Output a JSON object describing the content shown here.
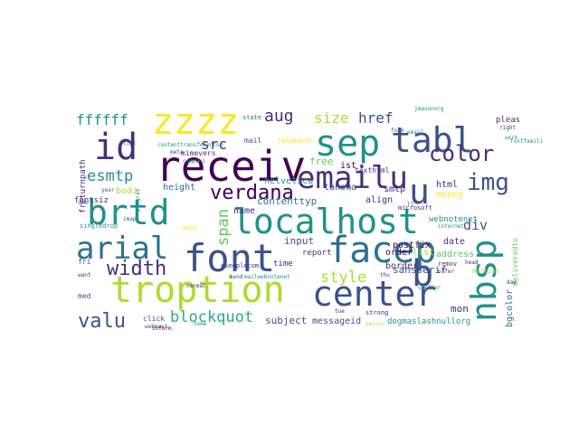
{
  "word_cloud": {
    "palette": [
      "#440154",
      "#472d7b",
      "#3b528b",
      "#2c728e",
      "#21918c",
      "#28ae80",
      "#5ec962",
      "#addc30",
      "#fde725"
    ],
    "words": [
      {
        "text": "receiv",
        "color": "#440154"
      },
      {
        "text": "localhost",
        "color": "#21918c"
      },
      {
        "text": "troption",
        "color": "#addc30"
      },
      {
        "text": "font",
        "color": "#3b528b"
      },
      {
        "text": "center",
        "color": "#3b528b"
      },
      {
        "text": "sep",
        "color": "#21918c"
      },
      {
        "text": "emailu",
        "color": "#472d7b"
      },
      {
        "text": "facep",
        "color": "#2c728e"
      },
      {
        "text": "tabl",
        "color": "#3b528b"
      },
      {
        "text": "zzzz",
        "color": "#fde725"
      },
      {
        "text": "brtd",
        "color": "#21918c"
      },
      {
        "text": "arial",
        "color": "#2c728e"
      },
      {
        "text": "nbsp",
        "color": "#21918c"
      },
      {
        "text": "id",
        "color": "#472d7b"
      },
      {
        "text": "b",
        "color": "#3b528b"
      },
      {
        "text": "u",
        "color": "#3b528b"
      },
      {
        "text": "verdana",
        "color": "#440154"
      },
      {
        "text": "color",
        "color": "#472d7b"
      },
      {
        "text": "width",
        "color": "#472d7b"
      },
      {
        "text": "img",
        "color": "#3b528b"
      },
      {
        "text": "valu",
        "color": "#3b528b"
      },
      {
        "text": "ffffff",
        "color": "#21918c"
      },
      {
        "text": "aug",
        "color": "#472d7b"
      },
      {
        "text": "esmtp",
        "color": "#21918c"
      },
      {
        "text": "blockquot",
        "color": "#28ae80"
      },
      {
        "text": "style",
        "color": "#addc30"
      },
      {
        "text": "size",
        "color": "#addc30"
      },
      {
        "text": "href",
        "color": "#3b528b"
      },
      {
        "text": "src",
        "color": "#472d7b"
      },
      {
        "text": "span",
        "color": "#5ec962"
      },
      {
        "text": "div",
        "color": "#3b528b"
      },
      {
        "text": "height",
        "color": "#2c728e"
      },
      {
        "text": "helvetica",
        "color": "#21918c"
      },
      {
        "text": "align",
        "color": "#472d7b"
      },
      {
        "text": "input",
        "color": "#3b528b"
      },
      {
        "text": "contenttyp",
        "color": "#2c728e"
      },
      {
        "text": "sansserif",
        "color": "#3b528b"
      },
      {
        "text": "subject",
        "color": "#3b528b"
      },
      {
        "text": "messageid",
        "color": "#3b528b"
      },
      {
        "text": "mon",
        "color": "#472d7b"
      },
      {
        "text": "html",
        "color": "#472d7b"
      },
      {
        "text": "money",
        "color": "#fde725"
      },
      {
        "text": "free",
        "color": "#5ec962"
      },
      {
        "text": "ist",
        "color": "#440154"
      },
      {
        "text": "name",
        "color": "#472d7b"
      },
      {
        "text": "bodi",
        "color": "#addc30"
      },
      {
        "text": "smtp",
        "color": "#472d7b"
      },
      {
        "text": "tahoma",
        "color": "#3b528b"
      },
      {
        "text": "border",
        "color": "#472d7b"
      },
      {
        "text": "date",
        "color": "#472d7b"
      },
      {
        "text": "order",
        "color": "#440154"
      },
      {
        "text": "list",
        "color": "#addc30"
      },
      {
        "text": "postfix",
        "color": "#440154"
      },
      {
        "text": "address",
        "color": "#5ec962"
      },
      {
        "text": "report",
        "color": "#472d7b"
      },
      {
        "text": "time",
        "color": "#472d7b"
      },
      {
        "text": "webnotenet",
        "color": "#21918c"
      },
      {
        "text": "bgcolor",
        "color": "#2c728e"
      },
      {
        "text": "dogmaslashnullorg",
        "color": "#21918c"
      },
      {
        "text": "fontsiz",
        "color": "#472d7b"
      },
      {
        "text": "freturnpath",
        "color": "#472d7b"
      },
      {
        "text": "mimevers",
        "color": "#472d7b"
      },
      {
        "text": "jalapeno",
        "color": "#fde725"
      },
      {
        "text": "mail",
        "color": "#3b528b"
      },
      {
        "text": "pleas",
        "color": "#472d7b"
      },
      {
        "text": "fri",
        "color": "#3b528b"
      },
      {
        "text": "med",
        "color": "#3b528b"
      },
      {
        "text": "click",
        "color": "#3b528b"
      },
      {
        "text": "texthtml",
        "color": "#472d7b"
      },
      {
        "text": "singledrop",
        "color": "#21918c"
      },
      {
        "text": "contenttransferencod",
        "color": "#21918c"
      },
      {
        "text": "microsoft",
        "color": "#472d7b"
      },
      {
        "text": "webmast",
        "color": "#3b528b"
      },
      {
        "text": "fontfamili",
        "color": "#21918c"
      },
      {
        "text": "deliveredto",
        "color": "#5ec962"
      },
      {
        "text": "million",
        "color": "#addc30"
      },
      {
        "text": "offer",
        "color": "#472d7b"
      },
      {
        "text": "head",
        "color": "#472d7b"
      },
      {
        "text": "right",
        "color": "#472d7b"
      },
      {
        "text": "work",
        "color": "#21918c"
      },
      {
        "text": "internet",
        "color": "#21918c"
      },
      {
        "text": "form",
        "color": "#3b528b"
      },
      {
        "text": "state",
        "color": "#2c728e"
      },
      {
        "text": "strong",
        "color": "#472d7b"
      },
      {
        "text": "servic",
        "color": "#addc30"
      },
      {
        "text": "tue",
        "color": "#472d7b"
      },
      {
        "text": "thu",
        "color": "#472d7b"
      },
      {
        "text": "day",
        "color": "#472d7b"
      },
      {
        "text": "inform",
        "color": "#440154"
      },
      {
        "text": "normal",
        "color": "#472d7b"
      },
      {
        "text": "program",
        "color": "#21918c"
      },
      {
        "text": "year",
        "color": "#3b528b"
      },
      {
        "text": "compani",
        "color": "#21918c"
      },
      {
        "text": "meta",
        "color": "#3b528b"
      },
      {
        "text": "titl",
        "color": "#3b528b"
      },
      {
        "text": "want",
        "color": "#472d7b"
      },
      {
        "text": "use",
        "color": "#3b528b"
      },
      {
        "text": "imap",
        "color": "#3b528b"
      },
      {
        "text": "mailwebnotenet",
        "color": "#21918c"
      },
      {
        "text": "eseeplecom",
        "color": "#472d7b"
      },
      {
        "text": "send",
        "color": "#3b528b"
      },
      {
        "text": "remov",
        "color": "#472d7b"
      },
      {
        "text": "ll",
        "color": "#3b528b"
      },
      {
        "text": "email",
        "color": "#21918c"
      },
      {
        "text": "smaller",
        "color": "#21918c"
      },
      {
        "text": "jmasonorg",
        "color": "#21918c"
      },
      {
        "text": "busi",
        "color": "#fde725"
      },
      {
        "text": "home",
        "color": "#21918c"
      }
    ]
  }
}
